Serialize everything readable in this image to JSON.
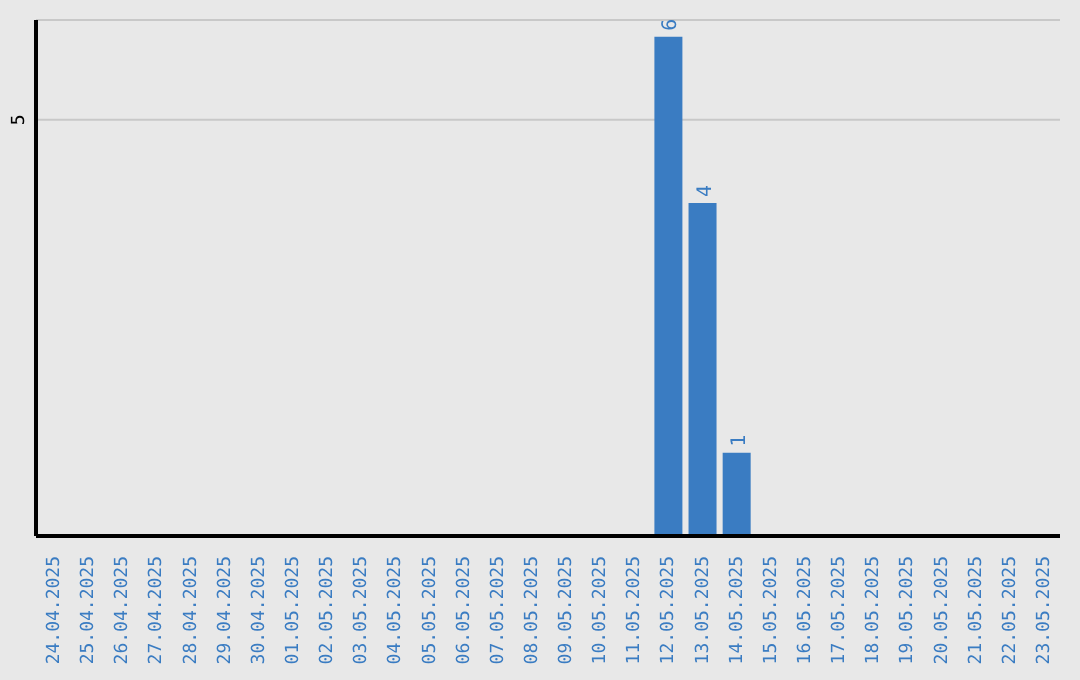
{
  "chart_data": {
    "type": "bar",
    "categories": [
      "24.04.2025",
      "25.04.2025",
      "26.04.2025",
      "27.04.2025",
      "28.04.2025",
      "29.04.2025",
      "30.04.2025",
      "01.05.2025",
      "02.05.2025",
      "03.05.2025",
      "04.05.2025",
      "05.05.2025",
      "06.05.2025",
      "07.05.2025",
      "08.05.2025",
      "09.05.2025",
      "10.05.2025",
      "11.05.2025",
      "12.05.2025",
      "13.05.2025",
      "14.05.2025",
      "15.05.2025",
      "16.05.2025",
      "17.05.2025",
      "18.05.2025",
      "19.05.2025",
      "20.05.2025",
      "21.05.2025",
      "22.05.2025",
      "23.05.2025"
    ],
    "values": [
      null,
      null,
      null,
      null,
      null,
      null,
      null,
      null,
      null,
      null,
      null,
      null,
      null,
      null,
      null,
      null,
      null,
      null,
      6,
      4,
      1,
      null,
      null,
      null,
      null,
      null,
      null,
      null,
      null,
      null
    ],
    "value_labels": [
      null,
      null,
      null,
      null,
      null,
      null,
      null,
      null,
      null,
      null,
      null,
      null,
      null,
      null,
      null,
      null,
      null,
      null,
      "6",
      "4",
      "1",
      null,
      null,
      null,
      null,
      null,
      null,
      null,
      null,
      null
    ],
    "color": "#3a7cc2",
    "ylim": [
      0,
      6.2
    ],
    "yticks": [
      5
    ],
    "grid": "y"
  }
}
